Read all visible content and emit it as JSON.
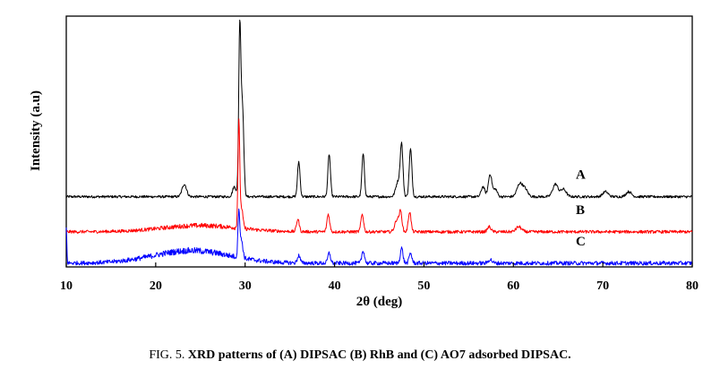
{
  "chart_data": {
    "type": "line",
    "xlabel": "2θ (deg)",
    "ylabel": "Intensity (a.u)",
    "xlim": [
      10,
      80
    ],
    "xticks": [
      10,
      20,
      30,
      40,
      50,
      60,
      70,
      80
    ],
    "ylim": [
      0,
      100
    ],
    "grid": false,
    "series": [
      {
        "name": "A",
        "color": "#000000",
        "baseline": 28,
        "noise": 0.5,
        "peaks": [
          {
            "x": 23.2,
            "h": 5,
            "w": 0.25
          },
          {
            "x": 28.8,
            "h": 4,
            "w": 0.2
          },
          {
            "x": 29.4,
            "h": 66,
            "w": 0.12
          },
          {
            "x": 29.7,
            "h": 36,
            "w": 0.15
          },
          {
            "x": 36.0,
            "h": 14,
            "w": 0.14
          },
          {
            "x": 39.4,
            "h": 17,
            "w": 0.14
          },
          {
            "x": 43.2,
            "h": 17,
            "w": 0.14
          },
          {
            "x": 47.1,
            "h": 6,
            "w": 0.25
          },
          {
            "x": 47.5,
            "h": 20,
            "w": 0.15
          },
          {
            "x": 48.5,
            "h": 19,
            "w": 0.15
          },
          {
            "x": 56.6,
            "h": 4,
            "w": 0.2
          },
          {
            "x": 57.4,
            "h": 9,
            "w": 0.2
          },
          {
            "x": 58.0,
            "h": 3,
            "w": 0.2
          },
          {
            "x": 60.7,
            "h": 5,
            "w": 0.3
          },
          {
            "x": 61.3,
            "h": 3,
            "w": 0.3
          },
          {
            "x": 64.7,
            "h": 5,
            "w": 0.3
          },
          {
            "x": 65.6,
            "h": 3,
            "w": 0.3
          },
          {
            "x": 70.3,
            "h": 2,
            "w": 0.3
          },
          {
            "x": 72.9,
            "h": 2,
            "w": 0.3
          }
        ]
      },
      {
        "name": "B",
        "color": "#ff0000",
        "baseline": 14,
        "noise": 0.6,
        "hump": {
          "center": 25,
          "amp": 2.5,
          "width": 6
        },
        "peaks": [
          {
            "x": 29.3,
            "h": 42,
            "w": 0.1
          },
          {
            "x": 29.6,
            "h": 8,
            "w": 0.15
          },
          {
            "x": 35.9,
            "h": 5,
            "w": 0.15
          },
          {
            "x": 39.3,
            "h": 7,
            "w": 0.15
          },
          {
            "x": 43.1,
            "h": 7,
            "w": 0.15
          },
          {
            "x": 47.0,
            "h": 5,
            "w": 0.25
          },
          {
            "x": 47.4,
            "h": 7,
            "w": 0.15
          },
          {
            "x": 48.4,
            "h": 8,
            "w": 0.15
          },
          {
            "x": 57.3,
            "h": 2,
            "w": 0.2
          },
          {
            "x": 60.6,
            "h": 2,
            "w": 0.3
          }
        ]
      },
      {
        "name": "C",
        "color": "#0000ff",
        "baseline": 1.5,
        "noise": 0.8,
        "hump": {
          "center": 24,
          "amp": 5,
          "width": 6
        },
        "startSpike": 14,
        "peaks": [
          {
            "x": 29.3,
            "h": 19,
            "w": 0.1
          },
          {
            "x": 29.6,
            "h": 7,
            "w": 0.15
          },
          {
            "x": 36.0,
            "h": 3,
            "w": 0.15
          },
          {
            "x": 39.4,
            "h": 4,
            "w": 0.15
          },
          {
            "x": 43.2,
            "h": 5,
            "w": 0.15
          },
          {
            "x": 47.5,
            "h": 6,
            "w": 0.15
          },
          {
            "x": 48.5,
            "h": 4,
            "w": 0.15
          },
          {
            "x": 57.4,
            "h": 1.5,
            "w": 0.2
          }
        ]
      }
    ]
  },
  "caption": {
    "prefix": "FIG. 5. ",
    "text": "XRD patterns of (A) DIPSAC (B) RhB and (C) AO7 adsorbed DIPSAC."
  }
}
